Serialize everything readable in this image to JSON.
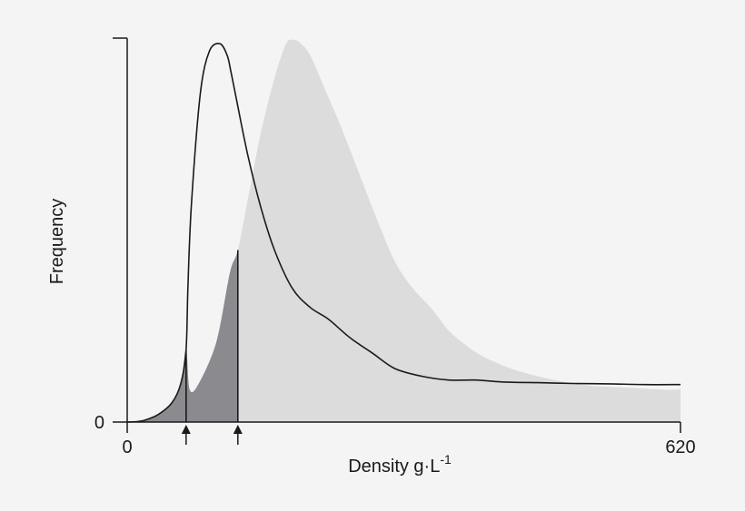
{
  "chart_data": {
    "type": "area",
    "xlabel": "Density g·L",
    "xlabel_superscript": "-1",
    "ylabel": "Frequency",
    "xlim": [
      0,
      620
    ],
    "x_tick_labels": [
      "0",
      "620"
    ],
    "y_tick_labels": [
      "0"
    ],
    "grid": false,
    "colors": {
      "background": "#f4f4f4",
      "light_area": "#dcdcdd",
      "dark_area": "#8a8a8f",
      "line": "#1a1a1a",
      "axis": "#1a1a1a"
    },
    "series": [
      {
        "style": "filled-area",
        "x": [
          0,
          10,
          20,
          35,
          50,
          60,
          66,
          70,
          80,
          100,
          115,
          124,
          135,
          150,
          165,
          178,
          187,
          195,
          205,
          220,
          240,
          260,
          280,
          300,
          320,
          340,
          350,
          360,
          380,
          400,
          430,
          460,
          490,
          520,
          560,
          600,
          620
        ],
        "y": [
          0,
          0.1,
          0.5,
          2,
          5,
          10,
          19,
          8.5,
          10,
          21,
          39,
          45,
          58,
          76,
          90,
          99,
          100,
          99,
          96,
          88,
          77,
          65,
          53,
          42,
          35,
          30,
          27,
          24,
          20,
          17,
          14,
          12,
          10.5,
          9.5,
          9,
          8.5,
          8.5
        ]
      },
      {
        "style": "line",
        "x": [
          0,
          10,
          20,
          35,
          50,
          60,
          66,
          68,
          72,
          82,
          92,
          104,
          112,
          116,
          122,
          135,
          150,
          165,
          185,
          205,
          225,
          250,
          275,
          300,
          330,
          360,
          390,
          420,
          460,
          500,
          540,
          580,
          620
        ],
        "y": [
          0,
          0.1,
          0.5,
          2,
          5,
          10,
          19,
          35,
          57,
          86,
          97,
          99,
          96,
          92,
          85,
          70,
          56,
          45,
          35,
          30,
          27,
          22,
          18,
          14,
          12,
          11,
          11,
          10.5,
          10.3,
          10.1,
          10,
          9.8,
          9.8
        ]
      }
    ],
    "dark_range": [
      0,
      124
    ],
    "markers": [
      {
        "x": 66,
        "label": ""
      },
      {
        "x": 124,
        "label": ""
      }
    ]
  }
}
